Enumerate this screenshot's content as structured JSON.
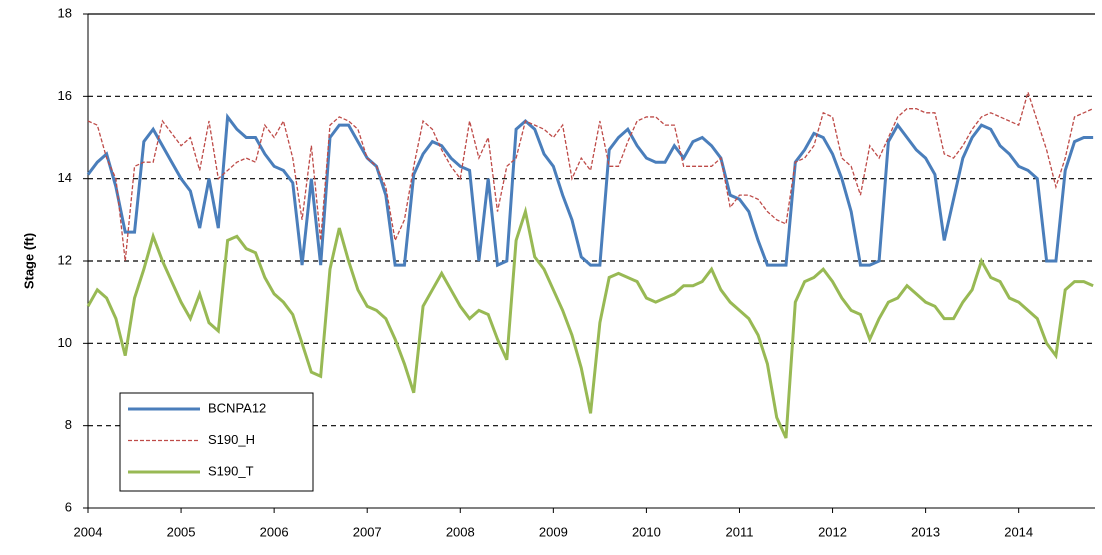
{
  "chart_data": {
    "type": "line",
    "ylabel": "Stage (ft)",
    "xlim": [
      2004,
      2014.82
    ],
    "ylim": [
      6,
      18
    ],
    "xticks": [
      2004,
      2005,
      2006,
      2007,
      2008,
      2009,
      2010,
      2011,
      2012,
      2013,
      2014
    ],
    "yticks": [
      6,
      8,
      10,
      12,
      14,
      16,
      18
    ],
    "grid": true,
    "legend": "lower-left",
    "x": [
      2004.0,
      2004.1,
      2004.2,
      2004.3,
      2004.4,
      2004.5,
      2004.6,
      2004.7,
      2004.8,
      2004.9,
      2005.0,
      2005.1,
      2005.2,
      2005.3,
      2005.4,
      2005.5,
      2005.6,
      2005.7,
      2005.8,
      2005.9,
      2006.0,
      2006.1,
      2006.2,
      2006.3,
      2006.4,
      2006.5,
      2006.6,
      2006.7,
      2006.8,
      2006.9,
      2007.0,
      2007.1,
      2007.2,
      2007.3,
      2007.4,
      2007.5,
      2007.6,
      2007.7,
      2007.8,
      2007.9,
      2008.0,
      2008.1,
      2008.2,
      2008.3,
      2008.4,
      2008.5,
      2008.6,
      2008.7,
      2008.8,
      2008.9,
      2009.0,
      2009.1,
      2009.2,
      2009.3,
      2009.4,
      2009.5,
      2009.6,
      2009.7,
      2009.8,
      2009.9,
      2010.0,
      2010.1,
      2010.2,
      2010.3,
      2010.4,
      2010.5,
      2010.6,
      2010.7,
      2010.8,
      2010.9,
      2011.0,
      2011.1,
      2011.2,
      2011.3,
      2011.4,
      2011.5,
      2011.6,
      2011.7,
      2011.8,
      2011.9,
      2012.0,
      2012.1,
      2012.2,
      2012.3,
      2012.4,
      2012.5,
      2012.6,
      2012.7,
      2012.8,
      2012.9,
      2013.0,
      2013.1,
      2013.2,
      2013.3,
      2013.4,
      2013.5,
      2013.6,
      2013.7,
      2013.8,
      2013.9,
      2014.0,
      2014.1,
      2014.2,
      2014.3,
      2014.4,
      2014.5,
      2014.6,
      2014.7,
      2014.8
    ],
    "series": [
      {
        "name": "BCNPA12",
        "color": "#4a7ebb",
        "dash": "solid",
        "values": [
          14.1,
          14.4,
          14.6,
          13.8,
          12.7,
          12.7,
          14.9,
          15.2,
          14.8,
          14.4,
          14.0,
          13.7,
          12.8,
          14.0,
          12.8,
          15.5,
          15.2,
          15.0,
          15.0,
          14.6,
          14.3,
          14.2,
          13.9,
          11.9,
          14.0,
          11.9,
          15.0,
          15.3,
          15.3,
          14.9,
          14.5,
          14.3,
          13.6,
          11.9,
          11.9,
          14.1,
          14.6,
          14.9,
          14.8,
          14.5,
          14.3,
          14.2,
          12.0,
          14.0,
          11.9,
          12.0,
          15.2,
          15.4,
          15.2,
          14.6,
          14.3,
          13.6,
          13.0,
          12.1,
          11.9,
          11.9,
          14.7,
          15.0,
          15.2,
          14.8,
          14.5,
          14.4,
          14.4,
          14.8,
          14.5,
          14.9,
          15.0,
          14.8,
          14.5,
          13.6,
          13.5,
          13.2,
          12.5,
          11.9,
          11.9,
          11.9,
          14.4,
          14.7,
          15.1,
          15.0,
          14.6,
          14.0,
          13.2,
          11.9,
          11.9,
          12.0,
          14.9,
          15.3,
          15.0,
          14.7,
          14.5,
          14.1,
          12.5,
          13.5,
          14.5,
          15.0,
          15.3,
          15.2,
          14.8,
          14.6,
          14.3,
          14.2,
          14.0,
          12.0,
          12.0,
          14.2,
          14.9,
          15.0,
          15.0
        ]
      },
      {
        "name": "S190_H",
        "color": "#be4b48",
        "dash": "dashed",
        "values": [
          15.4,
          15.3,
          14.5,
          14.0,
          12.0,
          14.3,
          14.4,
          14.4,
          15.4,
          15.1,
          14.8,
          15.0,
          14.2,
          15.4,
          14.0,
          14.2,
          14.4,
          14.5,
          14.4,
          15.3,
          15.0,
          15.4,
          14.5,
          13.0,
          14.8,
          12.5,
          15.3,
          15.5,
          15.4,
          15.2,
          14.5,
          14.3,
          13.8,
          12.5,
          13.0,
          14.3,
          15.4,
          15.2,
          14.7,
          14.3,
          14.0,
          15.4,
          14.5,
          15.0,
          13.2,
          14.3,
          14.5,
          15.4,
          15.3,
          15.2,
          15.0,
          15.3,
          14.0,
          14.5,
          14.2,
          15.4,
          14.3,
          14.3,
          14.9,
          15.4,
          15.5,
          15.5,
          15.3,
          15.3,
          14.3,
          14.3,
          14.3,
          14.3,
          14.5,
          13.3,
          13.6,
          13.6,
          13.5,
          13.2,
          13.0,
          12.9,
          14.4,
          14.5,
          14.8,
          15.6,
          15.5,
          14.5,
          14.3,
          13.6,
          14.8,
          14.5,
          15.0,
          15.5,
          15.7,
          15.7,
          15.6,
          15.6,
          14.6,
          14.5,
          14.8,
          15.2,
          15.5,
          15.6,
          15.5,
          15.4,
          15.3,
          16.1,
          15.4,
          14.7,
          13.8,
          14.5,
          15.5,
          15.6,
          15.7
        ]
      },
      {
        "name": "S190_T",
        "color": "#98b954",
        "dash": "solid",
        "values": [
          10.9,
          11.3,
          11.1,
          10.6,
          9.7,
          11.1,
          11.8,
          12.6,
          12.0,
          11.5,
          11.0,
          10.6,
          11.2,
          10.5,
          10.3,
          12.5,
          12.6,
          12.3,
          12.2,
          11.6,
          11.2,
          11.0,
          10.7,
          10.0,
          9.3,
          9.2,
          11.8,
          12.8,
          12.0,
          11.3,
          10.9,
          10.8,
          10.6,
          10.1,
          9.5,
          8.8,
          10.9,
          11.3,
          11.7,
          11.3,
          10.9,
          10.6,
          10.8,
          10.7,
          10.1,
          9.6,
          12.5,
          13.2,
          12.1,
          11.8,
          11.3,
          10.8,
          10.2,
          9.4,
          8.3,
          10.5,
          11.6,
          11.7,
          11.6,
          11.5,
          11.1,
          11.0,
          11.1,
          11.2,
          11.4,
          11.4,
          11.5,
          11.8,
          11.3,
          11.0,
          10.8,
          10.6,
          10.2,
          9.5,
          8.2,
          7.7,
          11.0,
          11.5,
          11.6,
          11.8,
          11.5,
          11.1,
          10.8,
          10.7,
          10.1,
          10.6,
          11.0,
          11.1,
          11.4,
          11.2,
          11.0,
          10.9,
          10.6,
          10.6,
          11.0,
          11.3,
          12.0,
          11.6,
          11.5,
          11.1,
          11.0,
          10.8,
          10.6,
          10.0,
          9.7,
          11.3,
          11.5,
          11.5,
          11.4
        ]
      }
    ]
  }
}
